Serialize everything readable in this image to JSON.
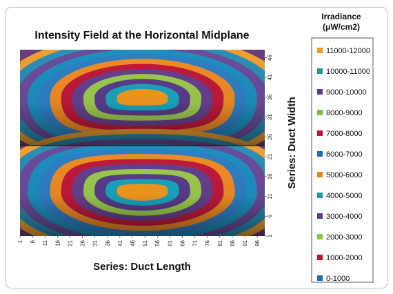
{
  "chart_data": {
    "type": "heatmap",
    "subtype": "contour",
    "title": "Intensity Field at the Horizontal Midplane",
    "xlabel": "Series: Duct Length",
    "ylabel": "Series: Duct Width",
    "x_ticks": [
      "1",
      "6",
      "11",
      "16",
      "21",
      "26",
      "31",
      "36",
      "41",
      "46",
      "51",
      "56",
      "61",
      "66",
      "71",
      "76",
      "81",
      "86",
      "91",
      "96"
    ],
    "y_ticks": [
      "1",
      "6",
      "11",
      "16",
      "21",
      "26",
      "31",
      "36",
      "41",
      "46"
    ],
    "y_axis_position": "right",
    "legend": {
      "title": "Irradiance (μW/cm2)",
      "title_lines": [
        "Irradiance",
        "(μW/cm2)"
      ],
      "position": "right",
      "items": [
        {
          "label": "11000-12000",
          "color": "#f39a1f"
        },
        {
          "label": "10000-11000",
          "color": "#1a9aa0"
        },
        {
          "label": "9000-10000",
          "color": "#5b3a8e"
        },
        {
          "label": "8000-9000",
          "color": "#7dbb42"
        },
        {
          "label": "7000-8000",
          "color": "#c8102e"
        },
        {
          "label": "6000-7000",
          "color": "#1f6fb2"
        },
        {
          "label": "5000-6000",
          "color": "#e8821e"
        },
        {
          "label": "4000-5000",
          "color": "#1f9ea8"
        },
        {
          "label": "3000-4000",
          "color": "#5a3d8c"
        },
        {
          "label": "2000-3000",
          "color": "#8cc63f"
        },
        {
          "label": "1000-2000",
          "color": "#c8102e"
        },
        {
          "label": "0-1000",
          "color": "#1f6fb2"
        }
      ]
    },
    "x_range": [
      1,
      99
    ],
    "y_range": [
      1,
      48
    ],
    "lobe_centers_y": [
      12,
      36
    ],
    "lobe_center_x": 50,
    "plot_background": "#6b3d7a",
    "band_colors_outer_to_inner": [
      "#f0a030",
      "#2a8fb7",
      "#6a4d9a",
      "#1e8fc0",
      "#2f7fc4",
      "#f08c25",
      "#c01a3a",
      "#66418f",
      "#9ccc4e",
      "#5a3d8c",
      "#1aa6c0",
      "#f39a1f"
    ],
    "grid": false
  }
}
